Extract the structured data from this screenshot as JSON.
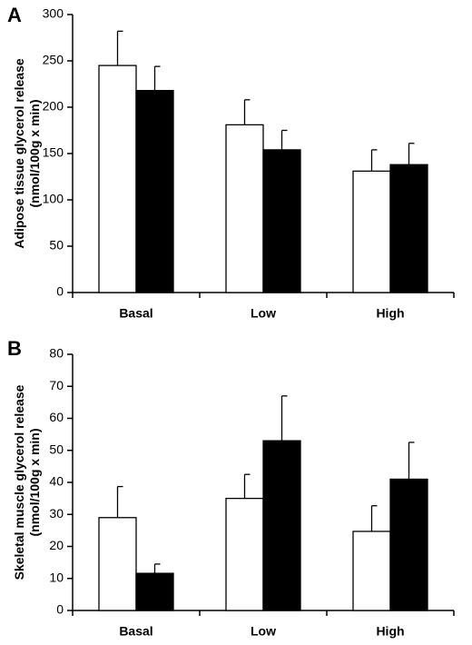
{
  "chart_data": [
    {
      "type": "bar",
      "panel": "A",
      "ylabel": [
        "Adipose tissue glycerol release",
        "(nmol/100g x min)"
      ],
      "categories": [
        "Basal",
        "Low",
        "High"
      ],
      "series": [
        {
          "color": "#ffffff",
          "values": [
            245,
            181,
            131
          ],
          "errors": [
            37,
            27,
            23
          ]
        },
        {
          "color": "#000000",
          "values": [
            218,
            154,
            138
          ],
          "errors": [
            26,
            21,
            23
          ]
        }
      ],
      "ylim": [
        0,
        300
      ],
      "yticks": [
        0,
        50,
        100,
        150,
        200,
        250,
        300
      ]
    },
    {
      "type": "bar",
      "panel": "B",
      "ylabel": [
        "Skeletal muscle glycerol release",
        "(nmol/100g x min)"
      ],
      "categories": [
        "Basal",
        "Low",
        "High"
      ],
      "series": [
        {
          "color": "#ffffff",
          "values": [
            29,
            35,
            24.7
          ],
          "errors": [
            9.7,
            7.5,
            8
          ]
        },
        {
          "color": "#000000",
          "values": [
            11.6,
            53,
            41
          ],
          "errors": [
            2.9,
            14,
            11.5
          ]
        }
      ],
      "ylim": [
        0,
        80
      ],
      "yticks": [
        0,
        10,
        20,
        30,
        40,
        50,
        60,
        70,
        80
      ]
    }
  ]
}
